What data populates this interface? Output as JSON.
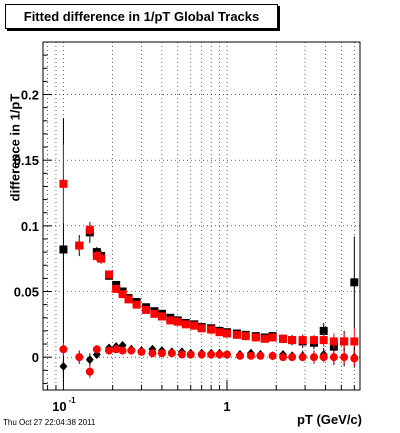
{
  "title": "Fitted difference in 1/pT  Global Tracks",
  "timestamp": "Thu Oct 27 22:04:38 2011",
  "chart_data": {
    "type": "scatter",
    "title": "Fitted difference in 1/pT  Global Tracks",
    "xlabel": "pT (GeV/c)",
    "ylabel": "difference in 1/pT",
    "x_scale": "log",
    "xlim": [
      0.075,
      6.5
    ],
    "ylim": [
      -0.025,
      0.24
    ],
    "grid": true,
    "y_ticks": [
      {
        "value": 0,
        "label": "0"
      },
      {
        "value": 0.05,
        "label": "0.05"
      },
      {
        "value": 0.1,
        "label": "0.1"
      },
      {
        "value": 0.15,
        "label": "0.15"
      },
      {
        "value": 0.2,
        "label": "0.2"
      }
    ],
    "x_ticks": [
      {
        "value": 0.1,
        "label": "10",
        "sup": "-1"
      },
      {
        "value": 1,
        "label": "1",
        "sup": ""
      }
    ],
    "series": [
      {
        "marker": "square",
        "color": "#000000",
        "points": [
          {
            "x": 0.1,
            "y": 0.082,
            "err": 0.1
          },
          {
            "x": 0.125,
            "y": 0.085,
            "err": 0.008
          },
          {
            "x": 0.145,
            "y": 0.095,
            "err": 0.008
          },
          {
            "x": 0.16,
            "y": 0.08,
            "err": 0.004
          },
          {
            "x": 0.17,
            "y": 0.077,
            "err": 0.004
          },
          {
            "x": 0.19,
            "y": 0.062,
            "err": 0.003
          },
          {
            "x": 0.21,
            "y": 0.055,
            "err": 0.003
          },
          {
            "x": 0.23,
            "y": 0.05,
            "err": 0.003
          },
          {
            "x": 0.25,
            "y": 0.045,
            "err": 0.002
          },
          {
            "x": 0.28,
            "y": 0.042,
            "err": 0.002
          },
          {
            "x": 0.32,
            "y": 0.038,
            "err": 0.002
          },
          {
            "x": 0.36,
            "y": 0.035,
            "err": 0.002
          },
          {
            "x": 0.4,
            "y": 0.033,
            "err": 0.002
          },
          {
            "x": 0.45,
            "y": 0.03,
            "err": 0.002
          },
          {
            "x": 0.5,
            "y": 0.028,
            "err": 0.002
          },
          {
            "x": 0.56,
            "y": 0.026,
            "err": 0.002
          },
          {
            "x": 0.63,
            "y": 0.025,
            "err": 0.002
          },
          {
            "x": 0.7,
            "y": 0.023,
            "err": 0.002
          },
          {
            "x": 0.8,
            "y": 0.022,
            "err": 0.002
          },
          {
            "x": 0.9,
            "y": 0.02,
            "err": 0.002
          },
          {
            "x": 1.0,
            "y": 0.019,
            "err": 0.002
          },
          {
            "x": 1.15,
            "y": 0.018,
            "err": 0.002
          },
          {
            "x": 1.3,
            "y": 0.017,
            "err": 0.002
          },
          {
            "x": 1.5,
            "y": 0.016,
            "err": 0.002
          },
          {
            "x": 1.7,
            "y": 0.015,
            "err": 0.002
          },
          {
            "x": 1.9,
            "y": 0.016,
            "err": 0.003
          },
          {
            "x": 2.2,
            "y": 0.014,
            "err": 0.003
          },
          {
            "x": 2.5,
            "y": 0.013,
            "err": 0.004
          },
          {
            "x": 2.9,
            "y": 0.012,
            "err": 0.005
          },
          {
            "x": 3.4,
            "y": 0.011,
            "err": 0.005
          },
          {
            "x": 3.9,
            "y": 0.02,
            "err": 0.006
          },
          {
            "x": 4.5,
            "y": 0.008,
            "err": 0.007
          },
          {
            "x": 5.2,
            "y": 0.012,
            "err": 0.008
          },
          {
            "x": 6.0,
            "y": 0.057,
            "err": 0.035
          }
        ]
      },
      {
        "marker": "square",
        "color": "#ff0000",
        "points": [
          {
            "x": 0.1,
            "y": 0.132,
            "err": 0.03
          },
          {
            "x": 0.125,
            "y": 0.085,
            "err": 0.006
          },
          {
            "x": 0.145,
            "y": 0.097,
            "err": 0.006
          },
          {
            "x": 0.16,
            "y": 0.077,
            "err": 0.004
          },
          {
            "x": 0.17,
            "y": 0.075,
            "err": 0.004
          },
          {
            "x": 0.19,
            "y": 0.063,
            "err": 0.003
          },
          {
            "x": 0.21,
            "y": 0.052,
            "err": 0.003
          },
          {
            "x": 0.23,
            "y": 0.048,
            "err": 0.002
          },
          {
            "x": 0.25,
            "y": 0.044,
            "err": 0.002
          },
          {
            "x": 0.28,
            "y": 0.04,
            "err": 0.002
          },
          {
            "x": 0.32,
            "y": 0.036,
            "err": 0.002
          },
          {
            "x": 0.36,
            "y": 0.033,
            "err": 0.002
          },
          {
            "x": 0.4,
            "y": 0.031,
            "err": 0.002
          },
          {
            "x": 0.45,
            "y": 0.028,
            "err": 0.002
          },
          {
            "x": 0.5,
            "y": 0.027,
            "err": 0.002
          },
          {
            "x": 0.56,
            "y": 0.025,
            "err": 0.002
          },
          {
            "x": 0.63,
            "y": 0.024,
            "err": 0.002
          },
          {
            "x": 0.7,
            "y": 0.022,
            "err": 0.002
          },
          {
            "x": 0.8,
            "y": 0.021,
            "err": 0.002
          },
          {
            "x": 0.9,
            "y": 0.019,
            "err": 0.002
          },
          {
            "x": 1.0,
            "y": 0.018,
            "err": 0.002
          },
          {
            "x": 1.15,
            "y": 0.017,
            "err": 0.002
          },
          {
            "x": 1.3,
            "y": 0.016,
            "err": 0.002
          },
          {
            "x": 1.5,
            "y": 0.015,
            "err": 0.002
          },
          {
            "x": 1.7,
            "y": 0.014,
            "err": 0.002
          },
          {
            "x": 1.9,
            "y": 0.015,
            "err": 0.003
          },
          {
            "x": 2.2,
            "y": 0.014,
            "err": 0.003
          },
          {
            "x": 2.5,
            "y": 0.013,
            "err": 0.003
          },
          {
            "x": 2.9,
            "y": 0.013,
            "err": 0.004
          },
          {
            "x": 3.4,
            "y": 0.013,
            "err": 0.004
          },
          {
            "x": 3.9,
            "y": 0.013,
            "err": 0.005
          },
          {
            "x": 4.5,
            "y": 0.012,
            "err": 0.006
          },
          {
            "x": 5.2,
            "y": 0.012,
            "err": 0.007
          },
          {
            "x": 6.0,
            "y": 0.012,
            "err": 0.01
          }
        ]
      },
      {
        "marker": "diamond",
        "color": "#000000",
        "points": [
          {
            "x": 0.1,
            "y": -0.007,
            "err": 0.01
          },
          {
            "x": 0.125,
            "y": 0.0,
            "err": 0.005
          },
          {
            "x": 0.145,
            "y": -0.002,
            "err": 0.005
          },
          {
            "x": 0.16,
            "y": 0.002,
            "err": 0.003
          },
          {
            "x": 0.19,
            "y": 0.007,
            "err": 0.003
          },
          {
            "x": 0.21,
            "y": 0.008,
            "err": 0.003
          },
          {
            "x": 0.23,
            "y": 0.009,
            "err": 0.003
          },
          {
            "x": 0.26,
            "y": 0.006,
            "err": 0.002
          },
          {
            "x": 0.3,
            "y": 0.005,
            "err": 0.002
          },
          {
            "x": 0.35,
            "y": 0.006,
            "err": 0.002
          },
          {
            "x": 0.4,
            "y": 0.005,
            "err": 0.002
          },
          {
            "x": 0.46,
            "y": 0.004,
            "err": 0.002
          },
          {
            "x": 0.53,
            "y": 0.004,
            "err": 0.002
          },
          {
            "x": 0.6,
            "y": 0.003,
            "err": 0.002
          },
          {
            "x": 0.7,
            "y": 0.003,
            "err": 0.002
          },
          {
            "x": 0.8,
            "y": 0.003,
            "err": 0.002
          },
          {
            "x": 0.9,
            "y": 0.003,
            "err": 0.002
          },
          {
            "x": 1.0,
            "y": 0.002,
            "err": 0.002
          },
          {
            "x": 1.2,
            "y": 0.002,
            "err": 0.002
          },
          {
            "x": 1.4,
            "y": 0.003,
            "err": 0.002
          },
          {
            "x": 1.6,
            "y": 0.002,
            "err": 0.002
          },
          {
            "x": 1.9,
            "y": 0.001,
            "err": 0.003
          },
          {
            "x": 2.2,
            "y": 0.002,
            "err": 0.003
          },
          {
            "x": 2.5,
            "y": 0.001,
            "err": 0.003
          },
          {
            "x": 2.9,
            "y": 0.001,
            "err": 0.004
          },
          {
            "x": 3.4,
            "y": 0.0,
            "err": 0.005
          },
          {
            "x": 3.9,
            "y": 0.002,
            "err": 0.005
          },
          {
            "x": 4.5,
            "y": 0.0,
            "err": 0.006
          },
          {
            "x": 5.2,
            "y": 0.0,
            "err": 0.007
          },
          {
            "x": 6.0,
            "y": 0.0,
            "err": 0.008
          }
        ]
      },
      {
        "marker": "circle",
        "color": "#ff0000",
        "points": [
          {
            "x": 0.1,
            "y": 0.006,
            "err": 0.005
          },
          {
            "x": 0.125,
            "y": 0.0,
            "err": 0.005
          },
          {
            "x": 0.145,
            "y": -0.011,
            "err": 0.005
          },
          {
            "x": 0.16,
            "y": 0.006,
            "err": 0.003
          },
          {
            "x": 0.19,
            "y": 0.005,
            "err": 0.002
          },
          {
            "x": 0.21,
            "y": 0.006,
            "err": 0.002
          },
          {
            "x": 0.23,
            "y": 0.005,
            "err": 0.002
          },
          {
            "x": 0.26,
            "y": 0.005,
            "err": 0.002
          },
          {
            "x": 0.3,
            "y": 0.004,
            "err": 0.002
          },
          {
            "x": 0.35,
            "y": 0.003,
            "err": 0.002
          },
          {
            "x": 0.4,
            "y": 0.003,
            "err": 0.002
          },
          {
            "x": 0.46,
            "y": 0.003,
            "err": 0.002
          },
          {
            "x": 0.53,
            "y": 0.002,
            "err": 0.002
          },
          {
            "x": 0.6,
            "y": 0.002,
            "err": 0.002
          },
          {
            "x": 0.7,
            "y": 0.002,
            "err": 0.002
          },
          {
            "x": 0.8,
            "y": 0.002,
            "err": 0.002
          },
          {
            "x": 0.9,
            "y": 0.002,
            "err": 0.002
          },
          {
            "x": 1.0,
            "y": 0.002,
            "err": 0.002
          },
          {
            "x": 1.2,
            "y": 0.001,
            "err": 0.002
          },
          {
            "x": 1.4,
            "y": 0.001,
            "err": 0.002
          },
          {
            "x": 1.6,
            "y": 0.001,
            "err": 0.002
          },
          {
            "x": 1.9,
            "y": 0.001,
            "err": 0.002
          },
          {
            "x": 2.2,
            "y": 0.0,
            "err": 0.003
          },
          {
            "x": 2.5,
            "y": 0.0,
            "err": 0.003
          },
          {
            "x": 2.9,
            "y": 0.0,
            "err": 0.003
          },
          {
            "x": 3.4,
            "y": 0.0,
            "err": 0.004
          },
          {
            "x": 3.9,
            "y": 0.0,
            "err": 0.004
          },
          {
            "x": 4.5,
            "y": 0.0,
            "err": 0.005
          },
          {
            "x": 5.2,
            "y": 0.0,
            "err": 0.005
          },
          {
            "x": 6.0,
            "y": -0.001,
            "err": 0.006
          }
        ]
      }
    ]
  }
}
